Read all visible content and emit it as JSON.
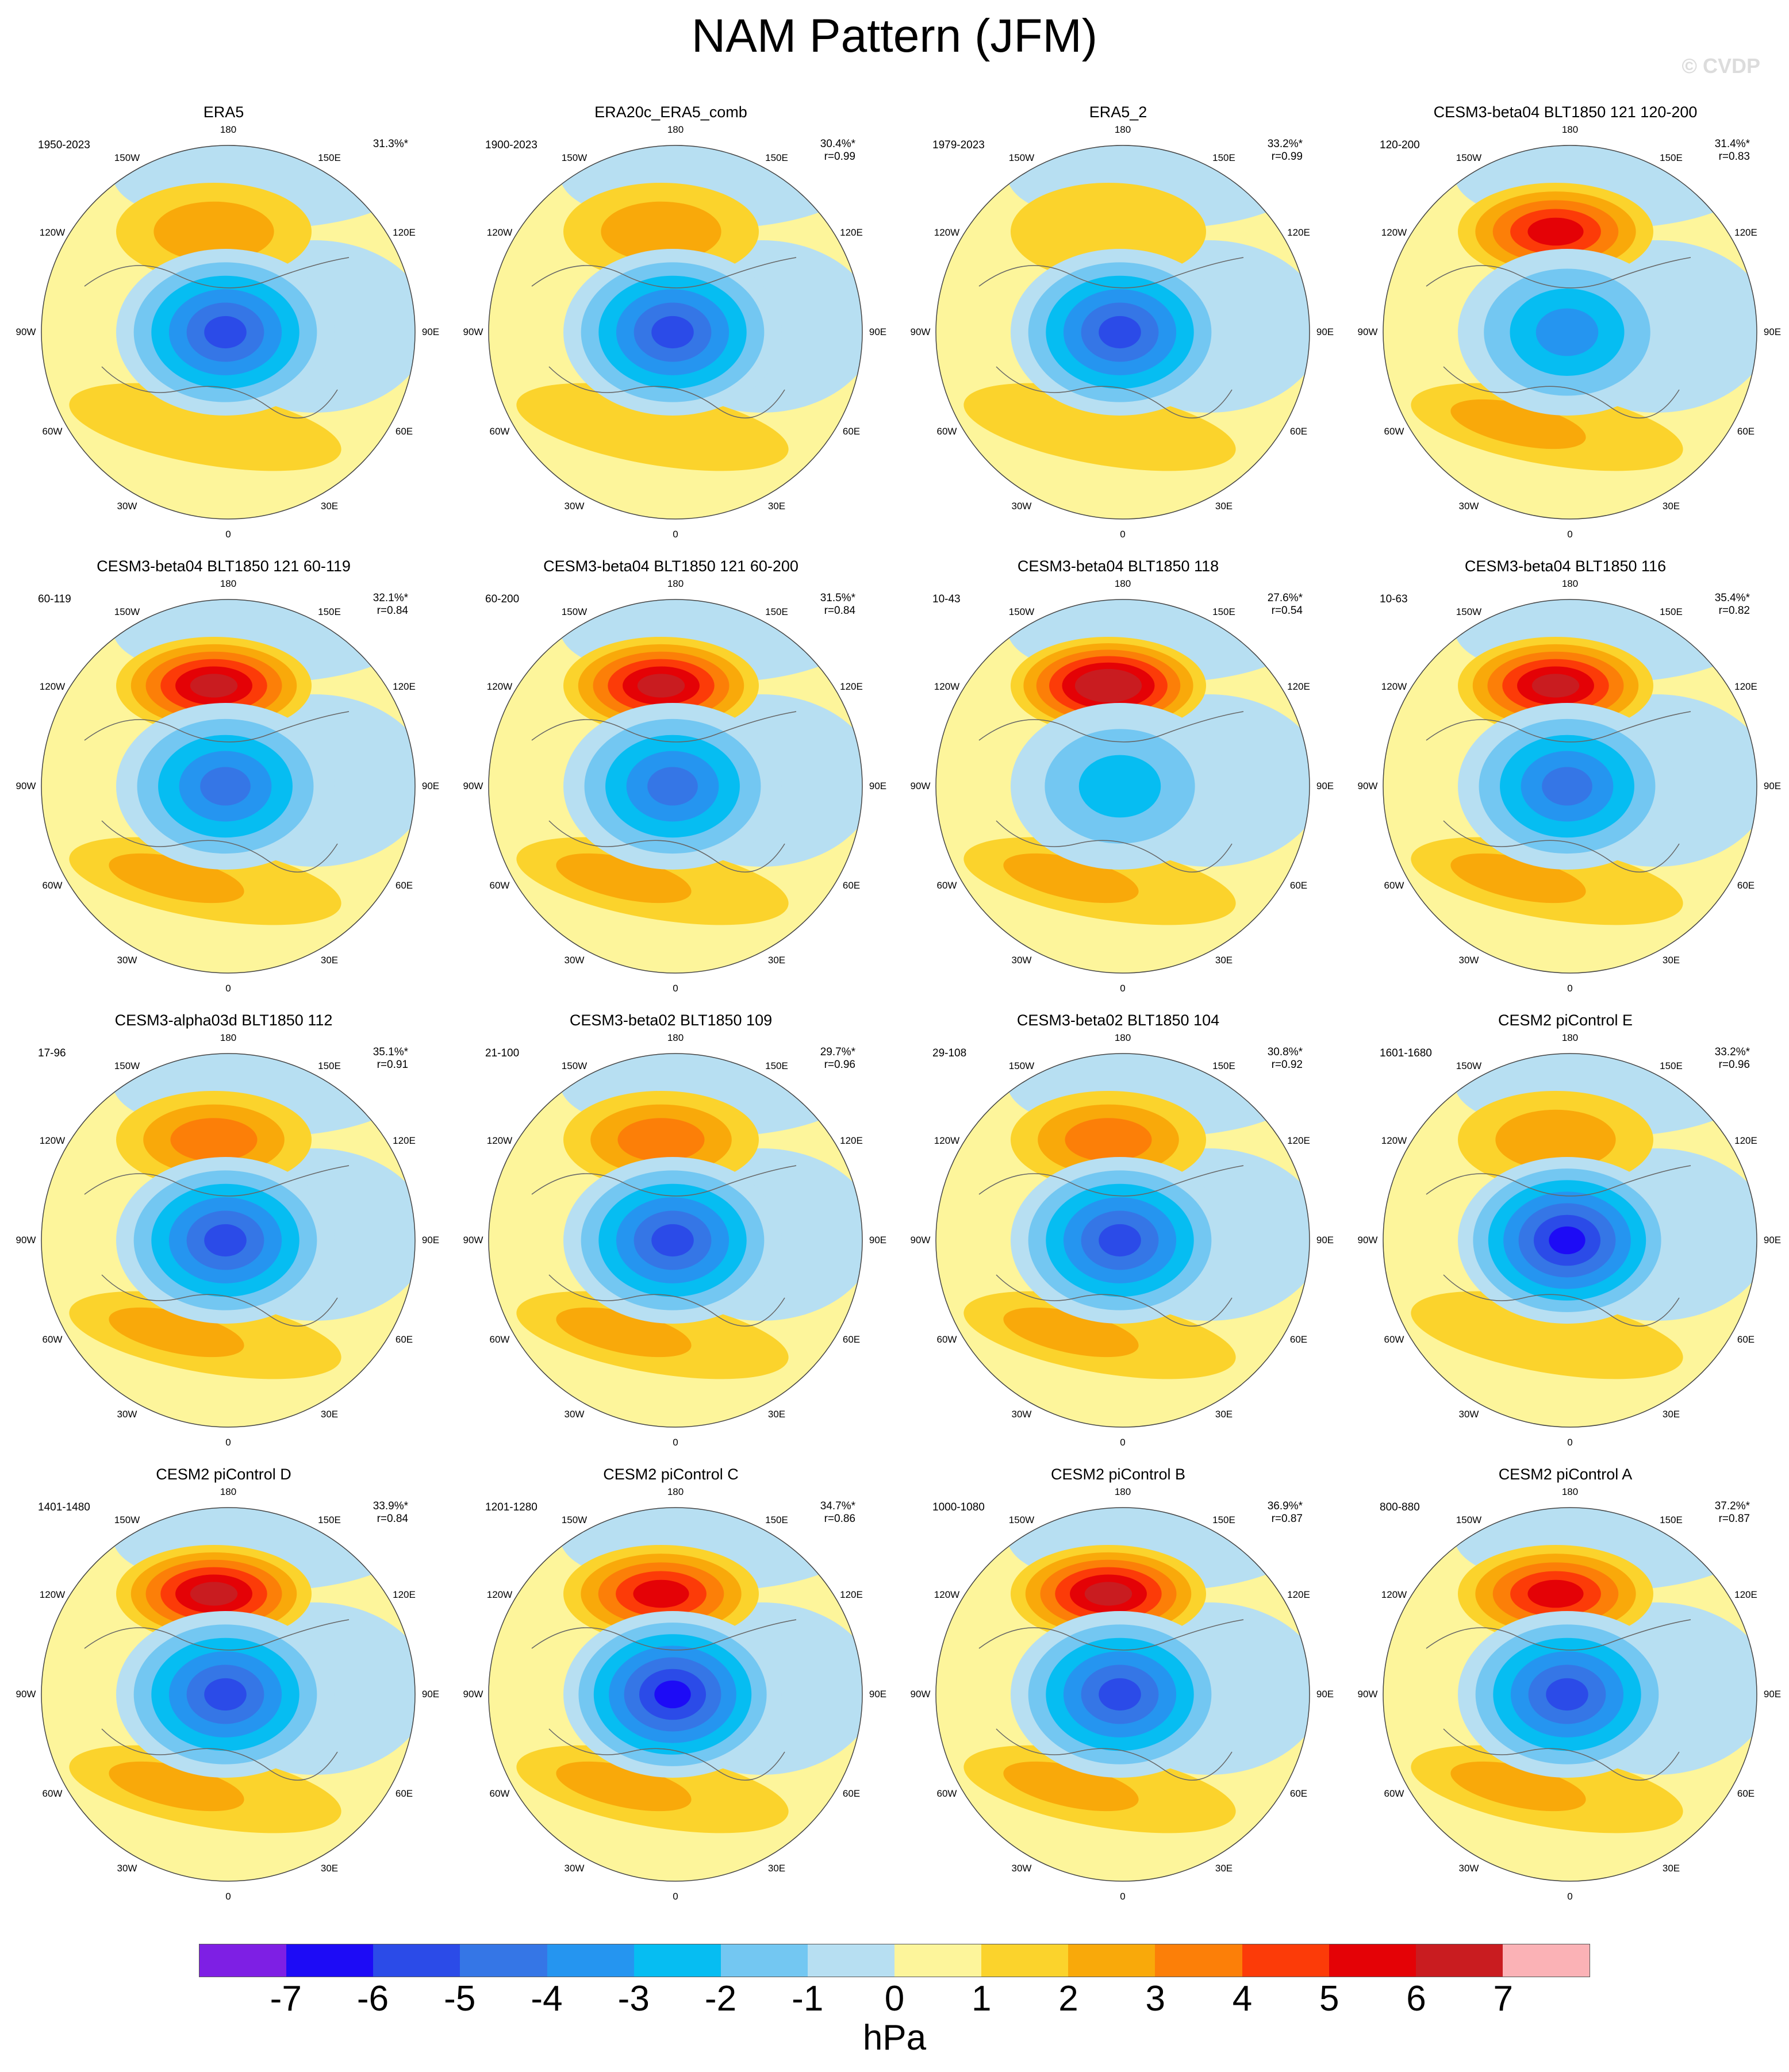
{
  "title": "NAM Pattern (JFM)",
  "watermark": "© CVDP",
  "colors": {
    "-7": "#7e1fe4",
    "-6": "#1d0bf6",
    "-5": "#2b4be8",
    "-4": "#3576e6",
    "-3": "#2595f0",
    "-2": "#06bdf2",
    "-1": "#73c7f2",
    "0": "#b7dff2",
    "1": "#fdf59b",
    "2": "#fbd32c",
    "3": "#f9a90a",
    "4": "#fc7f08",
    "5": "#fc3b08",
    "6": "#e40206",
    "7": "#c91c20",
    "8": "#fbb2b6"
  },
  "map_labels": {
    "lon_180": "180",
    "lon_150w": "150W",
    "lon_150e": "150E",
    "lon_120w": "120W",
    "lon_120e": "120E",
    "lon_90w": "90W",
    "lon_90e": "90E",
    "lon_60w": "60W",
    "lon_60e": "60E",
    "lon_30w": "30W",
    "lon_30e": "30E",
    "lon_0": "0"
  },
  "panels": [
    {
      "title": "ERA5",
      "period": "1950-2023",
      "pct": "31.3%*",
      "r": "",
      "pac": 2,
      "arc": -5
    },
    {
      "title": "ERA20c_ERA5_comb",
      "period": "1900-2023",
      "pct": "30.4%*",
      "r": "r=0.99",
      "pac": 2,
      "arc": -5
    },
    {
      "title": "ERA5_2",
      "period": "1979-2023",
      "pct": "33.2%*",
      "r": "r=0.99",
      "pac": 1,
      "arc": -5
    },
    {
      "title": "CESM3-beta04 BLT1850 121 120-200",
      "period": "120-200",
      "pct": "31.4%*",
      "r": "r=0.83",
      "pac": 5,
      "arc": -3
    },
    {
      "title": "CESM3-beta04 BLT1850 121 60-119",
      "period": "60-119",
      "pct": "32.1%*",
      "r": "r=0.84",
      "pac": 6,
      "arc": -4
    },
    {
      "title": "CESM3-beta04 BLT1850 121 60-200",
      "period": "60-200",
      "pct": "31.5%*",
      "r": "r=0.84",
      "pac": 6,
      "arc": -4
    },
    {
      "title": "CESM3-beta04 BLT1850 118",
      "period": "10-43",
      "pct": "27.6%*",
      "r": "r=0.54",
      "pac": 7,
      "arc": -2
    },
    {
      "title": "CESM3-beta04 BLT1850 116",
      "period": "10-63",
      "pct": "35.4%*",
      "r": "r=0.82",
      "pac": 6,
      "arc": -4
    },
    {
      "title": "CESM3-alpha03d BLT1850 112",
      "period": "17-96",
      "pct": "35.1%*",
      "r": "r=0.91",
      "pac": 3,
      "arc": -5
    },
    {
      "title": "CESM3-beta02 BLT1850 109",
      "period": "21-100",
      "pct": "29.7%*",
      "r": "r=0.96",
      "pac": 3,
      "arc": -5
    },
    {
      "title": "CESM3-beta02 BLT1850 104",
      "period": "29-108",
      "pct": "30.8%*",
      "r": "r=0.92",
      "pac": 3,
      "arc": -5
    },
    {
      "title": "CESM2 piControl E",
      "period": "1601-1680",
      "pct": "33.2%*",
      "r": "r=0.96",
      "pac": 2,
      "arc": -6
    },
    {
      "title": "CESM2 piControl D",
      "period": "1401-1480",
      "pct": "33.9%*",
      "r": "r=0.84",
      "pac": 6,
      "arc": -5
    },
    {
      "title": "CESM2 piControl C",
      "period": "1201-1280",
      "pct": "34.7%*",
      "r": "r=0.86",
      "pac": 5,
      "arc": -6
    },
    {
      "title": "CESM2 piControl B",
      "period": "1000-1080",
      "pct": "36.9%*",
      "r": "r=0.87",
      "pac": 6,
      "arc": -5
    },
    {
      "title": "CESM2 piControl A",
      "period": "800-880",
      "pct": "37.2%*",
      "r": "r=0.87",
      "pac": 5,
      "arc": -5
    }
  ],
  "colorbar": {
    "ticks": [
      "-7",
      "-6",
      "-5",
      "-4",
      "-3",
      "-2",
      "-1",
      "0",
      "1",
      "2",
      "3",
      "4",
      "5",
      "6",
      "7"
    ],
    "units": "hPa"
  }
}
